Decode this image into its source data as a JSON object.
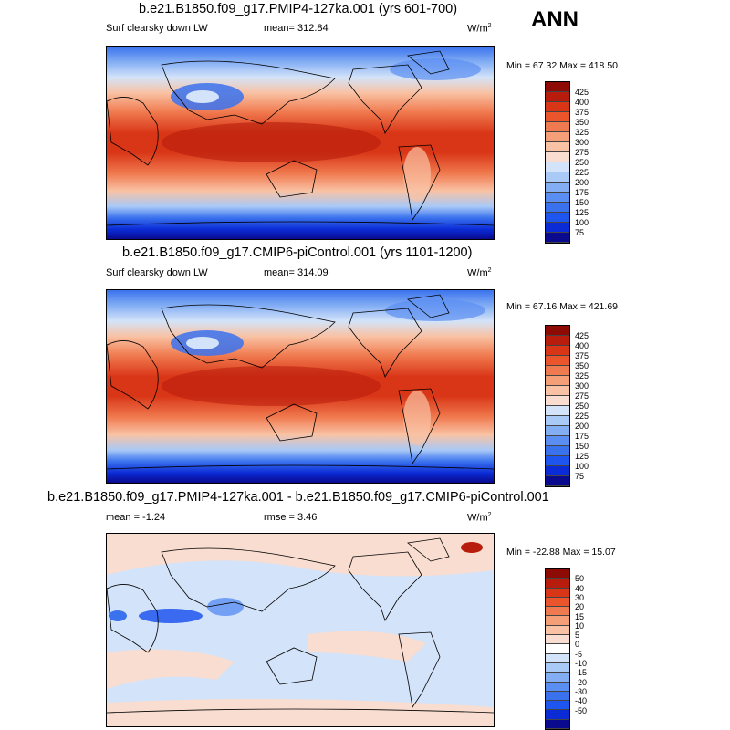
{
  "season": "ANN",
  "colors": {
    "abs_scale": [
      "#0a0a8f",
      "#0b2bd6",
      "#1d55ee",
      "#3a72ee",
      "#5b8ef2",
      "#83aef4",
      "#a9c9f7",
      "#d3e3f9",
      "#f8ddd0",
      "#f9c2a4",
      "#f59f78",
      "#f07a4f",
      "#ea552c",
      "#d93617",
      "#b81c0c",
      "#8e0b05"
    ],
    "diff_scale": [
      "#0a0a8f",
      "#0b2bd6",
      "#1d55ee",
      "#3a72ee",
      "#5b8ef2",
      "#83aef4",
      "#a9c9f7",
      "#d3e3f9",
      "#ffffff",
      "#f8ddd0",
      "#f9c2a4",
      "#f59f78",
      "#f07a4f",
      "#ea552c",
      "#d93617",
      "#b81c0c",
      "#8e0b05"
    ]
  },
  "panels": [
    {
      "title": "b.e21.B1850.f09_g17.PMIP4-127ka.001 (yrs 601-700)",
      "variable": "Surf clearsky down LW",
      "mean": "mean= 312.84",
      "units": "W/m",
      "units_sup": "2",
      "minmax": "Min =  67.32 Max = 418.50",
      "colorbar_labels": [
        "425",
        "400",
        "375",
        "350",
        "325",
        "300",
        "275",
        "250",
        "225",
        "200",
        "175",
        "150",
        "125",
        "100",
        "75"
      ]
    },
    {
      "title": "b.e21.B1850.f09_g17.CMIP6-piControl.001 (yrs 1101-1200)",
      "variable": "Surf clearsky down LW",
      "mean": "mean= 314.09",
      "units": "W/m",
      "units_sup": "2",
      "minmax": "Min =  67.16 Max = 421.69",
      "colorbar_labels": [
        "425",
        "400",
        "375",
        "350",
        "325",
        "300",
        "275",
        "250",
        "225",
        "200",
        "175",
        "150",
        "125",
        "100",
        "75"
      ]
    },
    {
      "title": "b.e21.B1850.f09_g17.PMIP4-127ka.001 - b.e21.B1850.f09_g17.CMIP6-piControl.001",
      "mean": "mean =  -1.24",
      "rmse": "rmse =   3.46",
      "units": "W/m",
      "units_sup": "2",
      "minmax": "Min = -22.88 Max =  15.07",
      "colorbar_labels": [
        "50",
        "40",
        "30",
        "20",
        "15",
        "10",
        "5",
        "0",
        "-5",
        "-10",
        "-15",
        "-20",
        "-30",
        "-40",
        "-50"
      ]
    }
  ]
}
